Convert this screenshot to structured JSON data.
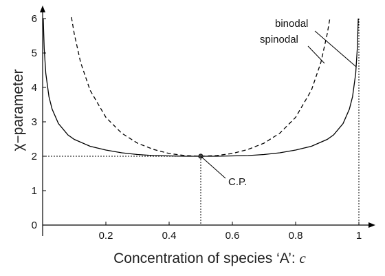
{
  "chart_data": {
    "type": "line",
    "xlabel": "Concentration of species ‘A’: ",
    "xlabel_var": "c",
    "ylabel": "χ−parameter",
    "xlim": [
      0,
      1
    ],
    "ylim": [
      0,
      6
    ],
    "xticks": [
      0.2,
      0.4,
      0.6,
      0.8,
      1
    ],
    "xtick_labels": [
      "0.2",
      "0.4",
      "0.6",
      "0.8",
      "1"
    ],
    "yticks": [
      0,
      1,
      2,
      3,
      4,
      5,
      6
    ],
    "ytick_labels": [
      "0",
      "1",
      "2",
      "3",
      "4",
      "5",
      "6"
    ],
    "grid": false,
    "series": [
      {
        "name": "binodal",
        "style": "solid",
        "color": "#000000",
        "x": [
          0.002,
          0.005,
          0.01,
          0.02,
          0.03,
          0.05,
          0.08,
          0.1,
          0.15,
          0.2,
          0.25,
          0.3,
          0.35,
          0.4,
          0.45,
          0.5,
          0.55,
          0.6,
          0.65,
          0.7,
          0.75,
          0.8,
          0.85,
          0.9,
          0.92,
          0.95,
          0.97,
          0.98,
          0.99,
          0.995,
          0.998
        ],
        "y": [
          6.0,
          5.13,
          4.41,
          3.73,
          3.37,
          2.95,
          2.62,
          2.49,
          2.29,
          2.18,
          2.1,
          2.05,
          2.02,
          2.01,
          2.0,
          2.0,
          2.0,
          2.01,
          2.02,
          2.05,
          2.1,
          2.18,
          2.29,
          2.49,
          2.62,
          2.95,
          3.37,
          3.73,
          4.41,
          5.13,
          6.0
        ]
      },
      {
        "name": "spinodal",
        "style": "dashed",
        "color": "#000000",
        "x": [
          0.0911,
          0.1,
          0.12,
          0.15,
          0.2,
          0.25,
          0.3,
          0.35,
          0.4,
          0.45,
          0.5,
          0.55,
          0.6,
          0.65,
          0.7,
          0.75,
          0.8,
          0.85,
          0.88,
          0.9,
          0.9089
        ],
        "y": [
          6.04,
          5.56,
          4.73,
          3.92,
          3.13,
          2.67,
          2.38,
          2.2,
          2.08,
          2.02,
          2.0,
          2.02,
          2.08,
          2.2,
          2.38,
          2.67,
          3.13,
          3.92,
          4.73,
          5.56,
          6.04
        ]
      }
    ],
    "critical_point": {
      "label": "C.P.",
      "x": 0.5,
      "y": 2
    },
    "annotations": [
      "binodal",
      "spinodal",
      "C.P."
    ]
  }
}
